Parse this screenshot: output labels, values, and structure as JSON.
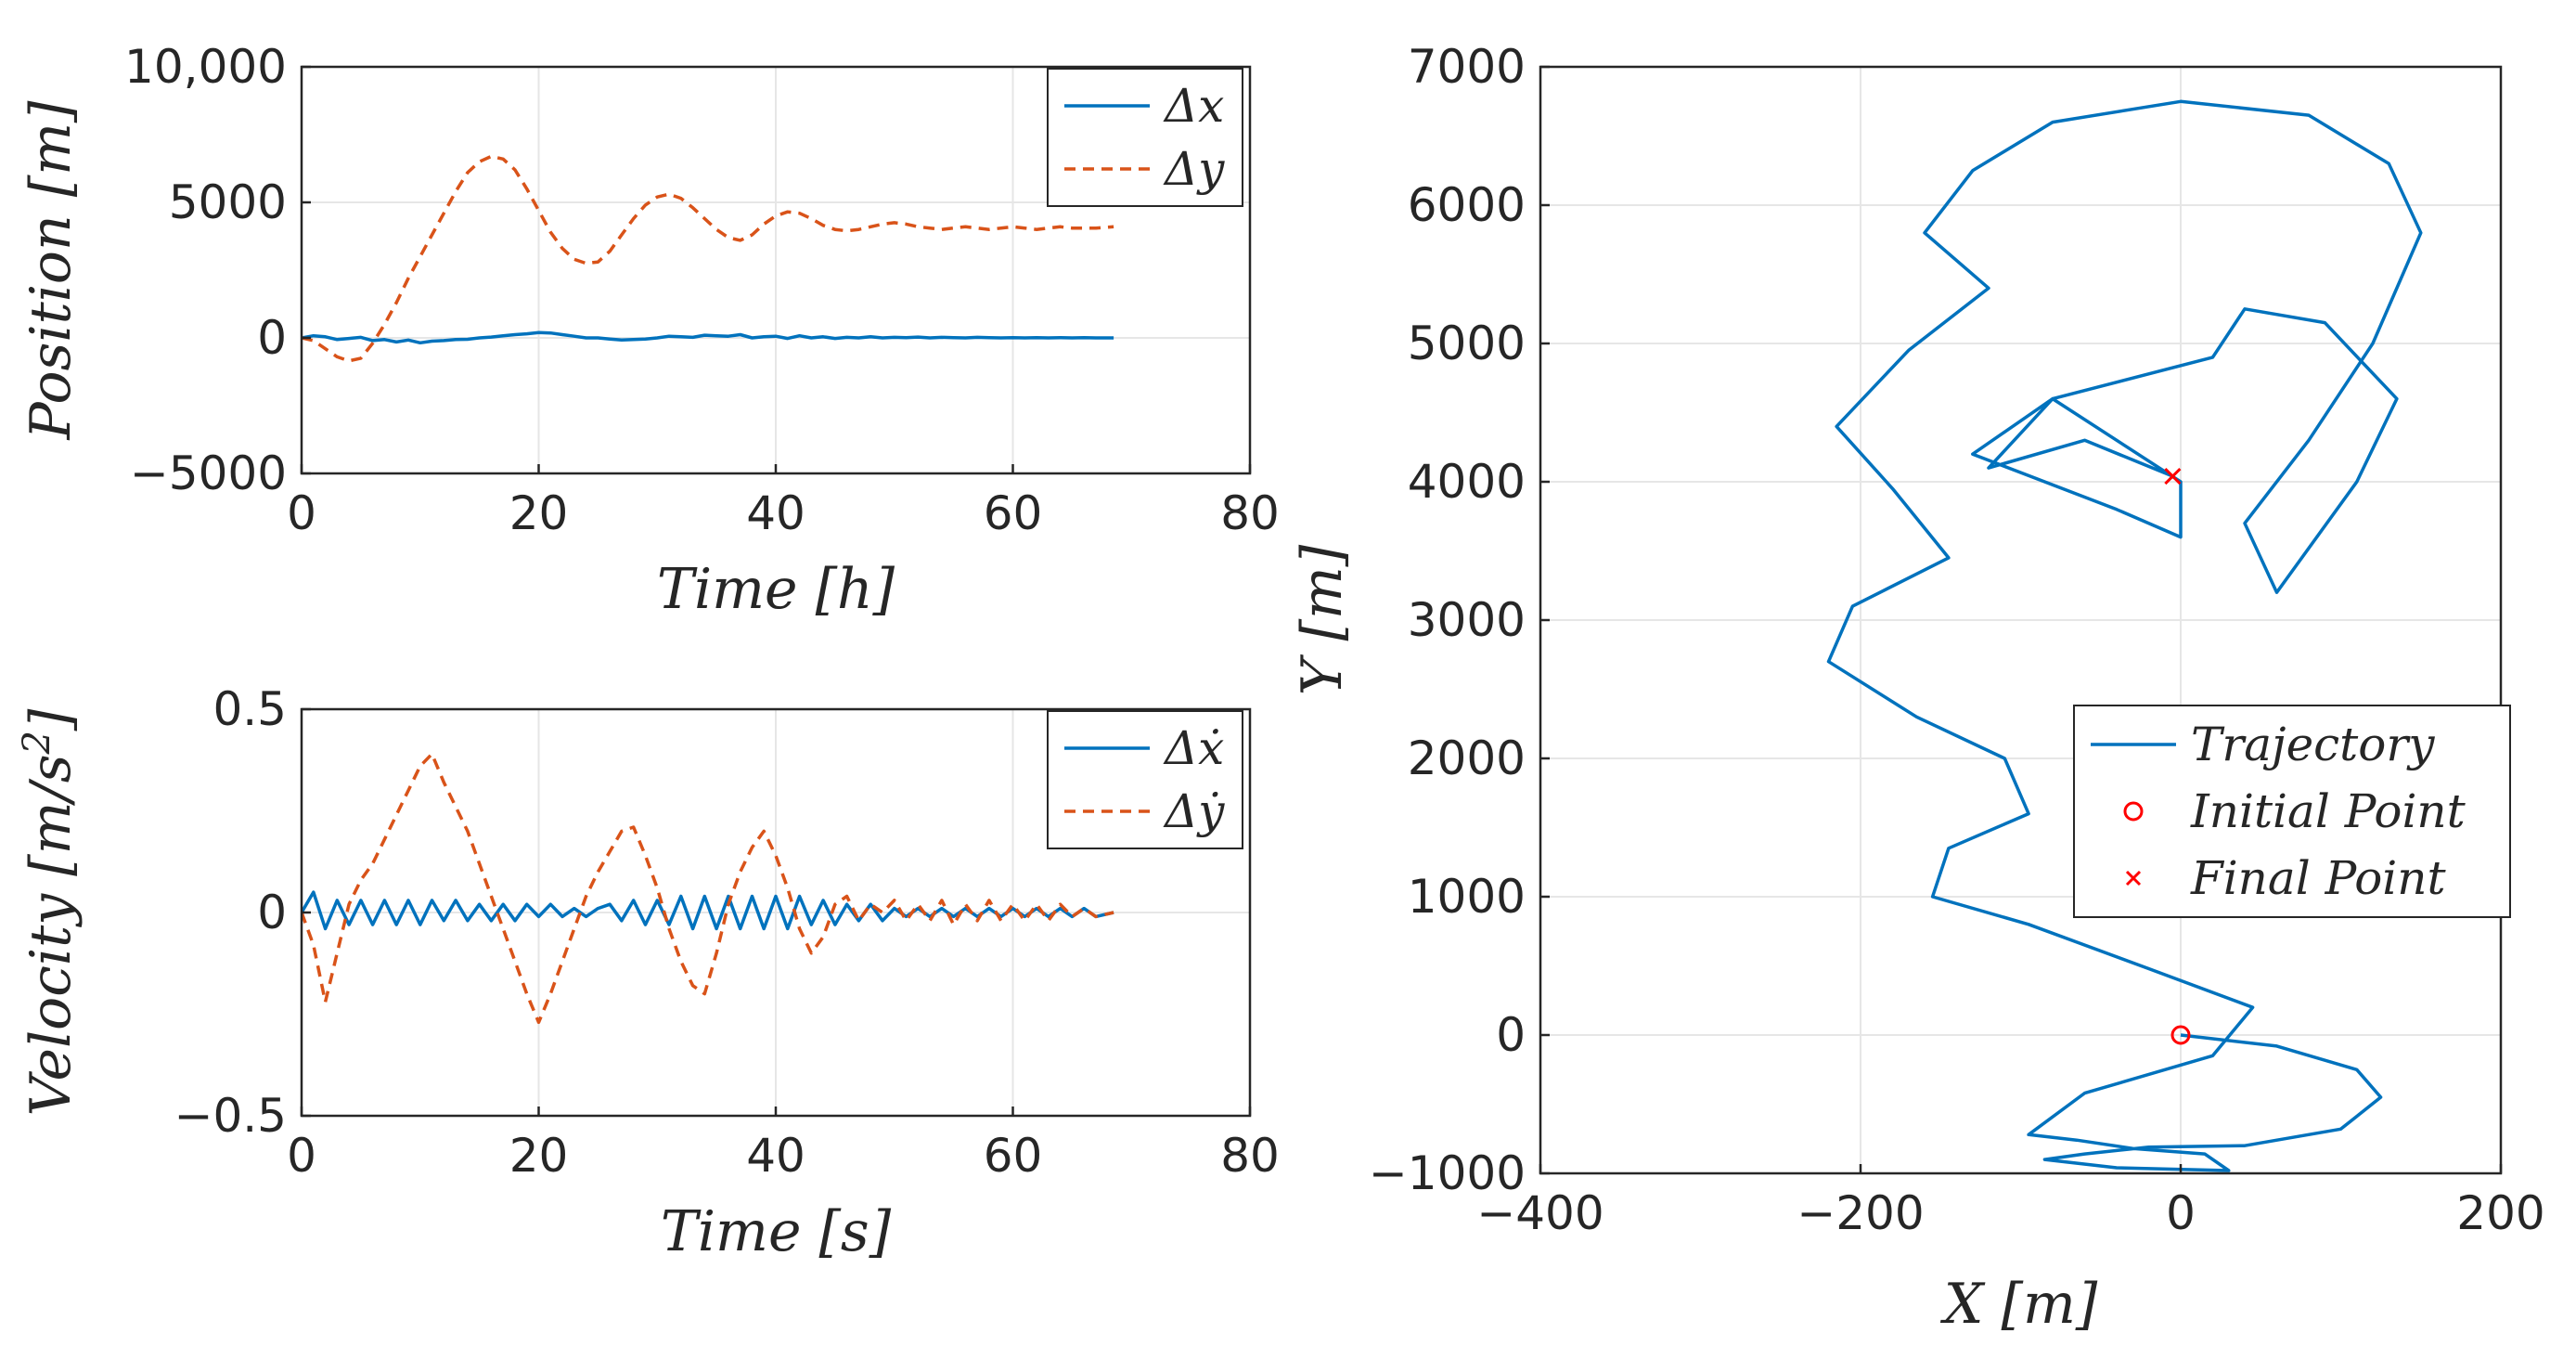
{
  "chart_data": [
    {
      "id": "position",
      "type": "line",
      "xlabel": "Time [h]",
      "ylabel": "Position [m]",
      "xlim": [
        0,
        80
      ],
      "ylim": [
        -5000,
        10000
      ],
      "xticks": [
        "0",
        "20",
        "40",
        "60",
        "80"
      ],
      "yticks": [
        "−5000",
        "0",
        "5000",
        "10,000"
      ],
      "legend_position": "top-right",
      "x": [
        0,
        1,
        2,
        3,
        4,
        5,
        6,
        7,
        8,
        9,
        10,
        11,
        12,
        13,
        14,
        15,
        16,
        17,
        18,
        19,
        20,
        21,
        22,
        23,
        24,
        25,
        26,
        27,
        28,
        29,
        30,
        31,
        32,
        33,
        34,
        35,
        36,
        37,
        38,
        39,
        40,
        41,
        42,
        43,
        44,
        45,
        46,
        47,
        48,
        49,
        50,
        51,
        52,
        53,
        54,
        55,
        56,
        57,
        58,
        59,
        60,
        61,
        62,
        63,
        64,
        65,
        66,
        67,
        68.5
      ],
      "series": [
        {
          "name": "Δx",
          "style": "solid",
          "color": "#0072BD",
          "values": [
            0,
            80,
            40,
            -60,
            -20,
            20,
            -100,
            -60,
            -150,
            -80,
            -180,
            -120,
            -100,
            -60,
            -50,
            0,
            30,
            80,
            120,
            150,
            200,
            180,
            120,
            60,
            0,
            0,
            -40,
            -80,
            -60,
            -40,
            0,
            60,
            40,
            20,
            100,
            80,
            60,
            120,
            0,
            40,
            60,
            -20,
            80,
            0,
            40,
            -20,
            20,
            0,
            40,
            0,
            20,
            10,
            30,
            0,
            20,
            10,
            0,
            20,
            10,
            0,
            10,
            0,
            10,
            0,
            10,
            0,
            10,
            0,
            0
          ]
        },
        {
          "name": "Δy",
          "style": "dashed",
          "color": "#D95319",
          "values": [
            0,
            -100,
            -400,
            -700,
            -850,
            -750,
            -200,
            500,
            1300,
            2200,
            3000,
            3800,
            4600,
            5400,
            6100,
            6500,
            6700,
            6600,
            6200,
            5500,
            4700,
            3900,
            3300,
            2900,
            2750,
            2800,
            3200,
            3800,
            4400,
            4900,
            5200,
            5300,
            5150,
            4800,
            4400,
            4000,
            3700,
            3600,
            3800,
            4200,
            4500,
            4650,
            4600,
            4400,
            4150,
            4000,
            3950,
            4000,
            4100,
            4200,
            4250,
            4200,
            4100,
            4050,
            4000,
            4050,
            4100,
            4050,
            4000,
            4050,
            4100,
            4050,
            4000,
            4050,
            4100,
            4050,
            4050,
            4050,
            4100
          ]
        }
      ]
    },
    {
      "id": "velocity",
      "type": "line",
      "xlabel": "Time [s]",
      "ylabel": "Velocity [m/s²]",
      "ylabel_main": "Velocity [m/s",
      "ylabel_sup": "2",
      "ylabel_end": "]",
      "xlim": [
        0,
        80
      ],
      "ylim": [
        -0.5,
        0.5
      ],
      "xticks": [
        "0",
        "20",
        "40",
        "60",
        "80"
      ],
      "yticks": [
        "−0.5",
        "0",
        "0.5"
      ],
      "legend_position": "top-right",
      "x": [
        0,
        1,
        2,
        3,
        4,
        5,
        6,
        7,
        8,
        9,
        10,
        11,
        12,
        13,
        14,
        15,
        16,
        17,
        18,
        19,
        20,
        21,
        22,
        23,
        24,
        25,
        26,
        27,
        28,
        29,
        30,
        31,
        32,
        33,
        34,
        35,
        36,
        37,
        38,
        39,
        40,
        41,
        42,
        43,
        44,
        45,
        46,
        47,
        48,
        49,
        50,
        51,
        52,
        53,
        54,
        55,
        56,
        57,
        58,
        59,
        60,
        61,
        62,
        63,
        64,
        65,
        66,
        67,
        68.5
      ],
      "series": [
        {
          "name": "Δẋ",
          "style": "solid",
          "color": "#0072BD",
          "values": [
            0,
            0.05,
            -0.04,
            0.03,
            -0.03,
            0.03,
            -0.03,
            0.03,
            -0.03,
            0.03,
            -0.03,
            0.03,
            -0.02,
            0.03,
            -0.02,
            0.02,
            -0.02,
            0.02,
            -0.02,
            0.02,
            -0.01,
            0.02,
            -0.01,
            0.01,
            -0.01,
            0.01,
            0.02,
            -0.02,
            0.03,
            -0.03,
            0.03,
            -0.03,
            0.04,
            -0.04,
            0.04,
            -0.04,
            0.04,
            -0.04,
            0.04,
            -0.04,
            0.04,
            -0.04,
            0.04,
            -0.03,
            0.03,
            -0.03,
            0.02,
            -0.02,
            0.02,
            -0.02,
            0.01,
            -0.01,
            0.01,
            -0.01,
            0.01,
            -0.01,
            0.01,
            -0.01,
            0.01,
            -0.01,
            0.01,
            -0.01,
            0.01,
            -0.01,
            0.01,
            -0.01,
            0.01,
            -0.01,
            0
          ]
        },
        {
          "name": "Δẏ",
          "style": "dashed",
          "color": "#D95319",
          "values": [
            0,
            -0.08,
            -0.22,
            -0.1,
            0.02,
            0.08,
            0.12,
            0.18,
            0.24,
            0.3,
            0.36,
            0.39,
            0.32,
            0.26,
            0.2,
            0.12,
            0.04,
            -0.04,
            -0.12,
            -0.2,
            -0.27,
            -0.2,
            -0.12,
            -0.04,
            0.04,
            0.1,
            0.15,
            0.2,
            0.21,
            0.14,
            0.06,
            -0.04,
            -0.12,
            -0.18,
            -0.2,
            -0.1,
            0.02,
            0.1,
            0.16,
            0.2,
            0.14,
            0.06,
            -0.04,
            -0.1,
            -0.06,
            0.02,
            0.04,
            -0.02,
            0.02,
            0.0,
            0.03,
            -0.02,
            0.02,
            -0.02,
            0.03,
            -0.03,
            0.02,
            -0.02,
            0.03,
            -0.02,
            0.02,
            -0.02,
            0.02,
            -0.02,
            0.02,
            -0.01,
            0.01,
            -0.01,
            0
          ]
        }
      ]
    },
    {
      "id": "trajectory",
      "type": "line",
      "xlabel": "X [m]",
      "ylabel": "Y [m]",
      "xlim": [
        -400,
        200
      ],
      "ylim": [
        -1000,
        7000
      ],
      "xticks": [
        "−400",
        "−200",
        "0",
        "200"
      ],
      "yticks": [
        "−1000",
        "0",
        "1000",
        "2000",
        "3000",
        "4000",
        "5000",
        "6000",
        "7000"
      ],
      "legend_position": "right",
      "series": [
        {
          "name": "Trajectory",
          "style": "solid",
          "color": "#0072BD",
          "x": [
            0,
            60,
            110,
            125,
            100,
            40,
            -20,
            -60,
            -85,
            -40,
            30,
            15,
            -30,
            -65,
            -95,
            -60,
            20,
            45,
            -20,
            -95,
            -155,
            -145,
            -95,
            -110,
            -165,
            -220,
            -205,
            -145,
            -180,
            -215,
            -170,
            -120,
            -160,
            -130,
            -80,
            0,
            80,
            130,
            150,
            120,
            80,
            40,
            60,
            110,
            135,
            90,
            40,
            20,
            -80,
            -130,
            -40,
            0,
            0,
            -80,
            -120,
            -60,
            -5
          ],
          "y": [
            0,
            -80,
            -250,
            -450,
            -680,
            -800,
            -810,
            -860,
            -900,
            -960,
            -980,
            -860,
            -820,
            -760,
            -720,
            -420,
            -150,
            200,
            480,
            800,
            1000,
            1350,
            1600,
            2000,
            2300,
            2700,
            3100,
            3450,
            3950,
            4400,
            4950,
            5400,
            5800,
            6250,
            6600,
            6750,
            6650,
            6300,
            5800,
            5000,
            4300,
            3700,
            3200,
            4000,
            4600,
            5150,
            5250,
            4900,
            4600,
            4200,
            3800,
            3600,
            4000,
            4600,
            4100,
            4300,
            4040
          ]
        },
        {
          "name": "Initial Point",
          "style": "marker-o",
          "color": "#FF0000",
          "x": [
            0
          ],
          "y": [
            0
          ]
        },
        {
          "name": "Final Point",
          "style": "marker-x",
          "color": "#FF0000",
          "x": [
            -5
          ],
          "y": [
            4040
          ]
        }
      ]
    }
  ]
}
